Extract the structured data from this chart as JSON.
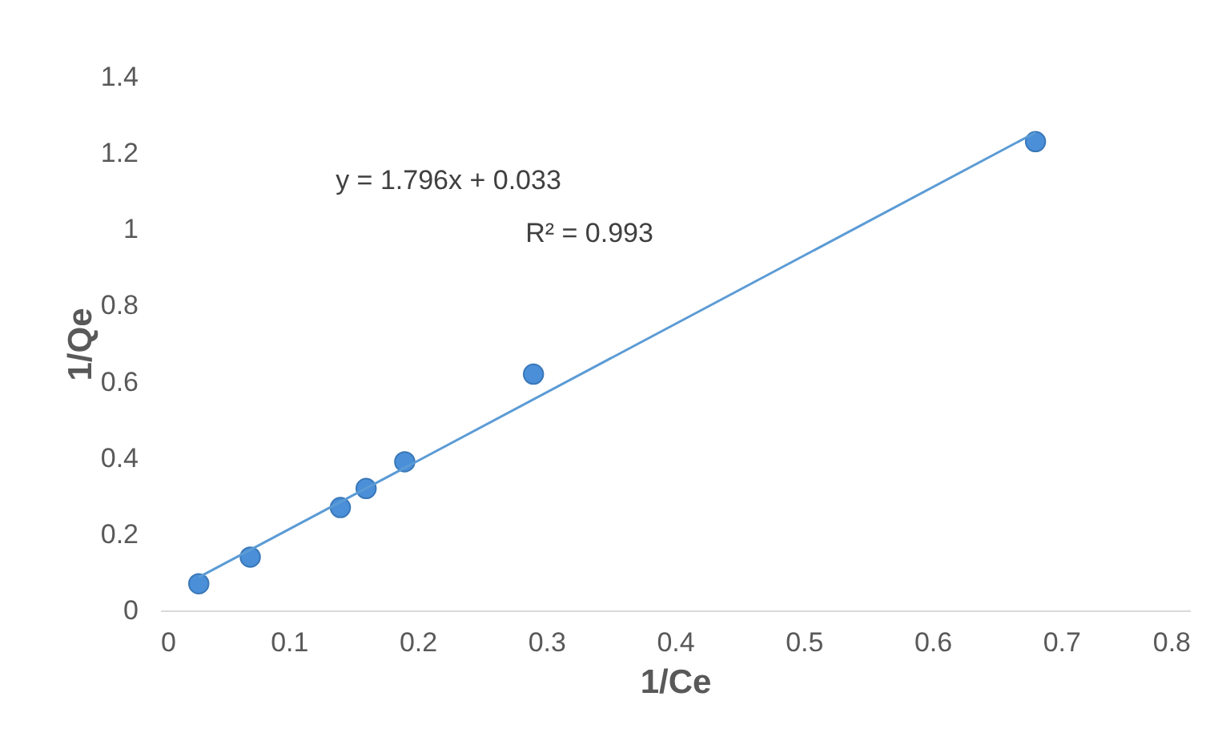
{
  "chart_data": {
    "type": "scatter",
    "xlabel": "1/Ce",
    "ylabel": "1/Qe",
    "marker": "circle",
    "xlim": [
      0,
      0.8
    ],
    "xticks": [
      0,
      0.1,
      0.2,
      0.3,
      0.4,
      0.5,
      0.6,
      0.7,
      0.8
    ],
    "ylim": [
      0,
      1.4
    ],
    "yticks": [
      0,
      0.2,
      0.4,
      0.6,
      0.8,
      1,
      1.2,
      1.4
    ],
    "x": [
      0.03,
      0.07,
      0.14,
      0.16,
      0.19,
      0.29,
      0.68
    ],
    "series": [
      {
        "color": "#4a8fd8",
        "values": [
          0.07,
          0.14,
          0.27,
          0.32,
          0.39,
          0.62,
          1.23
        ]
      },
      {
        "type": "line",
        "marker": "none",
        "color": "#5b9bd5",
        "x": [
          0.03,
          0.68
        ],
        "values": [
          0.087,
          1.254
        ]
      }
    ],
    "annotations": [
      "y = 1.796x + 0.033",
      "R² = 0.993"
    ]
  }
}
